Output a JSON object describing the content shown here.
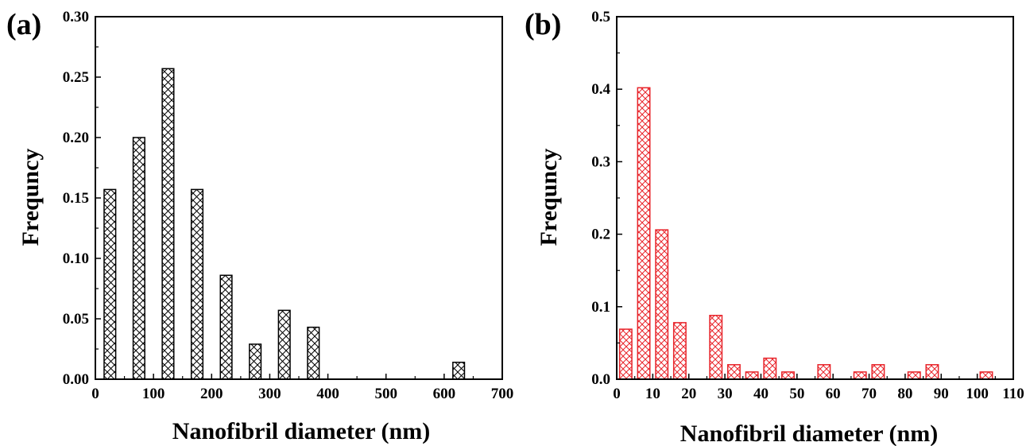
{
  "chart_data": [
    {
      "type": "bar",
      "panel_label": "(a)",
      "xlabel": "Nanofibril diameter (nm)",
      "ylabel": "Frequncy",
      "xlim": [
        0,
        700
      ],
      "ylim": [
        0,
        0.3
      ],
      "xticks": [
        0,
        100,
        200,
        300,
        400,
        500,
        600,
        700
      ],
      "xtick_labels": [
        "0",
        "100",
        "200",
        "300",
        "400",
        "500",
        "600",
        "700"
      ],
      "yticks": [
        0,
        0.05,
        0.1,
        0.15,
        0.2,
        0.25,
        0.3
      ],
      "ytick_labels": [
        "0.00",
        "0.05",
        "0.10",
        "0.15",
        "0.20",
        "0.25",
        "0.30"
      ],
      "x": [
        25,
        75,
        125,
        175,
        225,
        275,
        325,
        375,
        625
      ],
      "values": [
        0.157,
        0.2,
        0.257,
        0.157,
        0.086,
        0.029,
        0.057,
        0.043,
        0.014
      ],
      "bar_width": 20,
      "color": "#000000",
      "grid": false
    },
    {
      "type": "bar",
      "panel_label": "(b)",
      "xlabel": "Nanofibril diameter (nm)",
      "ylabel": "Frequncy",
      "xlim": [
        0,
        110
      ],
      "ylim": [
        0,
        0.5
      ],
      "xticks": [
        0,
        10,
        20,
        30,
        40,
        50,
        60,
        70,
        80,
        90,
        100,
        110
      ],
      "xtick_labels": [
        "0",
        "10",
        "20",
        "30",
        "40",
        "50",
        "60",
        "70",
        "80",
        "90",
        "100",
        "110"
      ],
      "yticks": [
        0,
        0.1,
        0.2,
        0.3,
        0.4,
        0.5
      ],
      "ytick_labels": [
        "0.0",
        "0.1",
        "0.2",
        "0.3",
        "0.4",
        "0.5"
      ],
      "x": [
        2.5,
        7.5,
        12.5,
        17.5,
        27.5,
        32.5,
        37.5,
        42.5,
        47.5,
        57.5,
        67.5,
        72.5,
        82.5,
        87.5,
        102.5
      ],
      "values": [
        0.069,
        0.402,
        0.206,
        0.078,
        0.088,
        0.02,
        0.01,
        0.029,
        0.01,
        0.02,
        0.01,
        0.02,
        0.01,
        0.02,
        0.01
      ],
      "bar_width": 3.4,
      "color": "#e8242a",
      "grid": false
    }
  ]
}
